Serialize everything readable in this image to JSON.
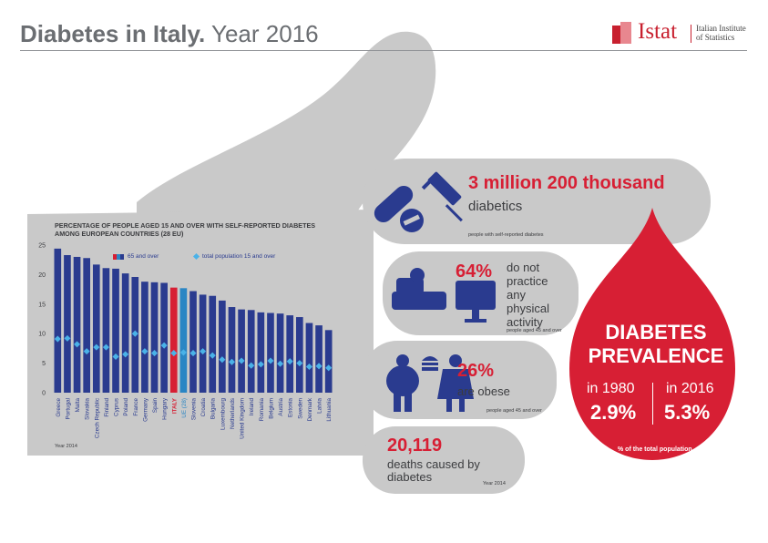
{
  "header": {
    "title_bold": "Diabetes in Italy.",
    "title_light": " Year 2016",
    "logo_name": "Istat",
    "logo_sub_line1": "Italian Institute",
    "logo_sub_line2": "of Statistics"
  },
  "colors": {
    "title": "#6b6e72",
    "accent_red": "#d71f34",
    "bar_blue": "#2a3b8f",
    "italy_red": "#d71f34",
    "eu_blue": "#2a86c4",
    "marker": "#4ab2e8",
    "panel_grey": "#c9c9c9"
  },
  "icons": [
    "pills-icon",
    "syringe-icon",
    "couch-tv-icon",
    "obese-people-icon",
    "burger-icon"
  ],
  "stats": {
    "diabetics": {
      "value": "3 million 200 thousand",
      "label": "diabetics",
      "note": "people with self-reported diabetes"
    },
    "inactivity": {
      "value": "64%",
      "label": "do not practice any physical activity",
      "note": "people aged 45 and over"
    },
    "obesity": {
      "value": "26%",
      "label": "are obese",
      "note": "people aged 45 and over"
    },
    "deaths": {
      "value": "20,119",
      "label": "deaths caused by diabetes",
      "note": "Year 2014"
    }
  },
  "prevalence": {
    "title": "DIABETES PREVALENCE",
    "year1_label": "in 1980",
    "year1_value": "2.9%",
    "year2_label": "in 2016",
    "year2_value": "5.3%",
    "note": "% of the total population"
  },
  "chart_data": {
    "type": "bar",
    "title": "PERCENTAGE OF PEOPLE AGED 15 AND OVER WITH SELF-REPORTED DIABETES AMONG EUROPEAN COUNTRIES (28 EU)",
    "source_note": "Year 2014",
    "ylim": [
      0,
      25
    ],
    "yticks": [
      0,
      5,
      10,
      15,
      20,
      25
    ],
    "legend_position": "top",
    "categories": [
      "Greece",
      "Portugal",
      "Malta",
      "Slovakia",
      "Czech Republic",
      "Finland",
      "Cyprus",
      "Poland",
      "France",
      "Germany",
      "Spain",
      "Hungary",
      "ITALY",
      "UE (28)",
      "Slovenia",
      "Croatia",
      "Bulgaria",
      "Luxembourg",
      "Netherlands",
      "United Kingdom",
      "Ireland",
      "Romania",
      "Belgium",
      "Austria",
      "Estonia",
      "Sweden",
      "Denmark",
      "Latvia",
      "Lithuania"
    ],
    "highlight": {
      "ITALY": "italy_red",
      "UE (28)": "eu_blue"
    },
    "series": [
      {
        "name": "65 and over",
        "kind": "bar",
        "values": [
          24.4,
          23.3,
          23.0,
          22.8,
          21.7,
          21.1,
          21.0,
          20.2,
          19.6,
          18.8,
          18.7,
          18.6,
          17.8,
          17.7,
          17.2,
          16.6,
          16.4,
          15.6,
          14.5,
          14.1,
          14.0,
          13.6,
          13.5,
          13.4,
          13.1,
          12.8,
          11.8,
          11.4,
          10.6
        ]
      },
      {
        "name": "total population 15 and over",
        "kind": "marker",
        "values": [
          9.1,
          9.2,
          8.2,
          7.0,
          7.7,
          7.7,
          6.1,
          6.5,
          10.0,
          7.0,
          6.7,
          8.0,
          6.7,
          6.8,
          6.7,
          7.0,
          6.3,
          5.6,
          5.2,
          5.4,
          4.6,
          4.8,
          5.4,
          4.9,
          5.3,
          5.0,
          4.4,
          4.5,
          4.2
        ]
      }
    ]
  }
}
